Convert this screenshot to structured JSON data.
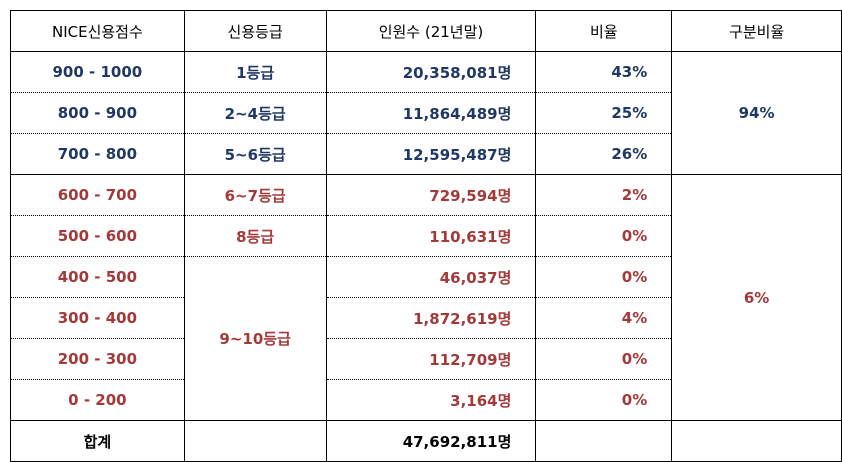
{
  "headers": [
    "NICE신용점수",
    "신용등급",
    "인원수 (21년말)",
    "비율",
    "구분비율"
  ],
  "rows": [
    {
      "score": "900 - 1000",
      "grade": "1등급",
      "count": "20,358,081명",
      "ratio": "43%"
    },
    {
      "score": "800 - 900",
      "grade": "2~4등급",
      "count": "11,864,489명",
      "ratio": "25%"
    },
    {
      "score": "700 - 800",
      "grade": "5~6등급",
      "count": "12,595,487명",
      "ratio": "26%"
    },
    {
      "score": "600 - 700",
      "grade": "6~7등급",
      "count": "729,594명",
      "ratio": "2%"
    },
    {
      "score": "500 - 600",
      "grade": "8등급",
      "count": "110,631명",
      "ratio": "0%"
    },
    {
      "score": "400 - 500",
      "grade": "9~10등급",
      "count": "46,037명",
      "ratio": "0%"
    },
    {
      "score": "300 - 400",
      "count": "1,872,619명",
      "ratio": "4%"
    },
    {
      "score": "200 - 300",
      "count": "112,709명",
      "ratio": "0%"
    },
    {
      "score": "0 - 200",
      "count": "3,164명",
      "ratio": "0%"
    }
  ],
  "group_ratios": [
    "94%",
    "6%"
  ],
  "total": {
    "label": "합계",
    "count": "47,692,811명"
  },
  "colors": {
    "upper_group": "#1f3864",
    "lower_group": "#a33a3a"
  }
}
